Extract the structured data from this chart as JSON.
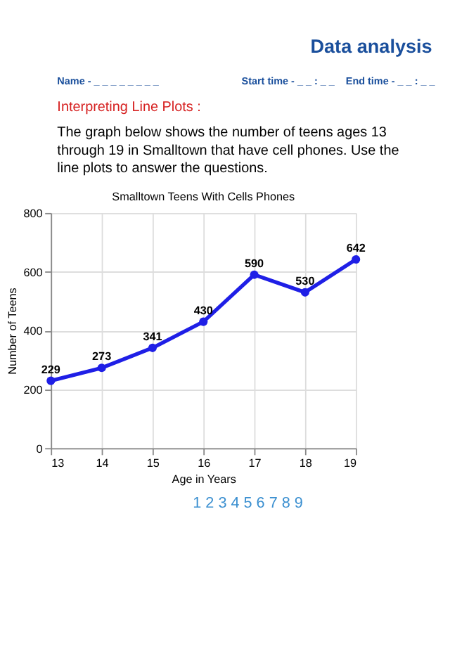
{
  "chart_data": {
    "type": "line",
    "title": "Smalltown Teens With Cells Phones",
    "xlabel": "Age in Years",
    "ylabel": "Number of Teens",
    "x": [
      13,
      14,
      15,
      16,
      17,
      18,
      19
    ],
    "series": [
      {
        "color": "#1f1fe6",
        "values": [
          229,
          273,
          341,
          430,
          590,
          530,
          642
        ]
      }
    ],
    "xlim": [
      13,
      19
    ],
    "xticks": [
      13,
      14,
      15,
      16,
      17,
      18,
      19
    ],
    "ylim": [
      0,
      800
    ],
    "yticks": [
      0,
      200,
      400,
      600,
      800
    ],
    "grid": true,
    "marker": "circle",
    "line_style": "solid",
    "data_labels": true,
    "legend": false,
    "annotations": [
      "Data analysis",
      "Name - _ _ _ _ _ _ _ _",
      "Start time - _ _ : _ _",
      "End time - _ _ : _ _",
      "Interpreting Line Plots :",
      "The graph below shows the number of teens ages 13 through 19 in Smalltown that have cell phones. Use the line plots to answer the questions.",
      "1   2   3   4   5   6   7   8   9"
    ]
  }
}
